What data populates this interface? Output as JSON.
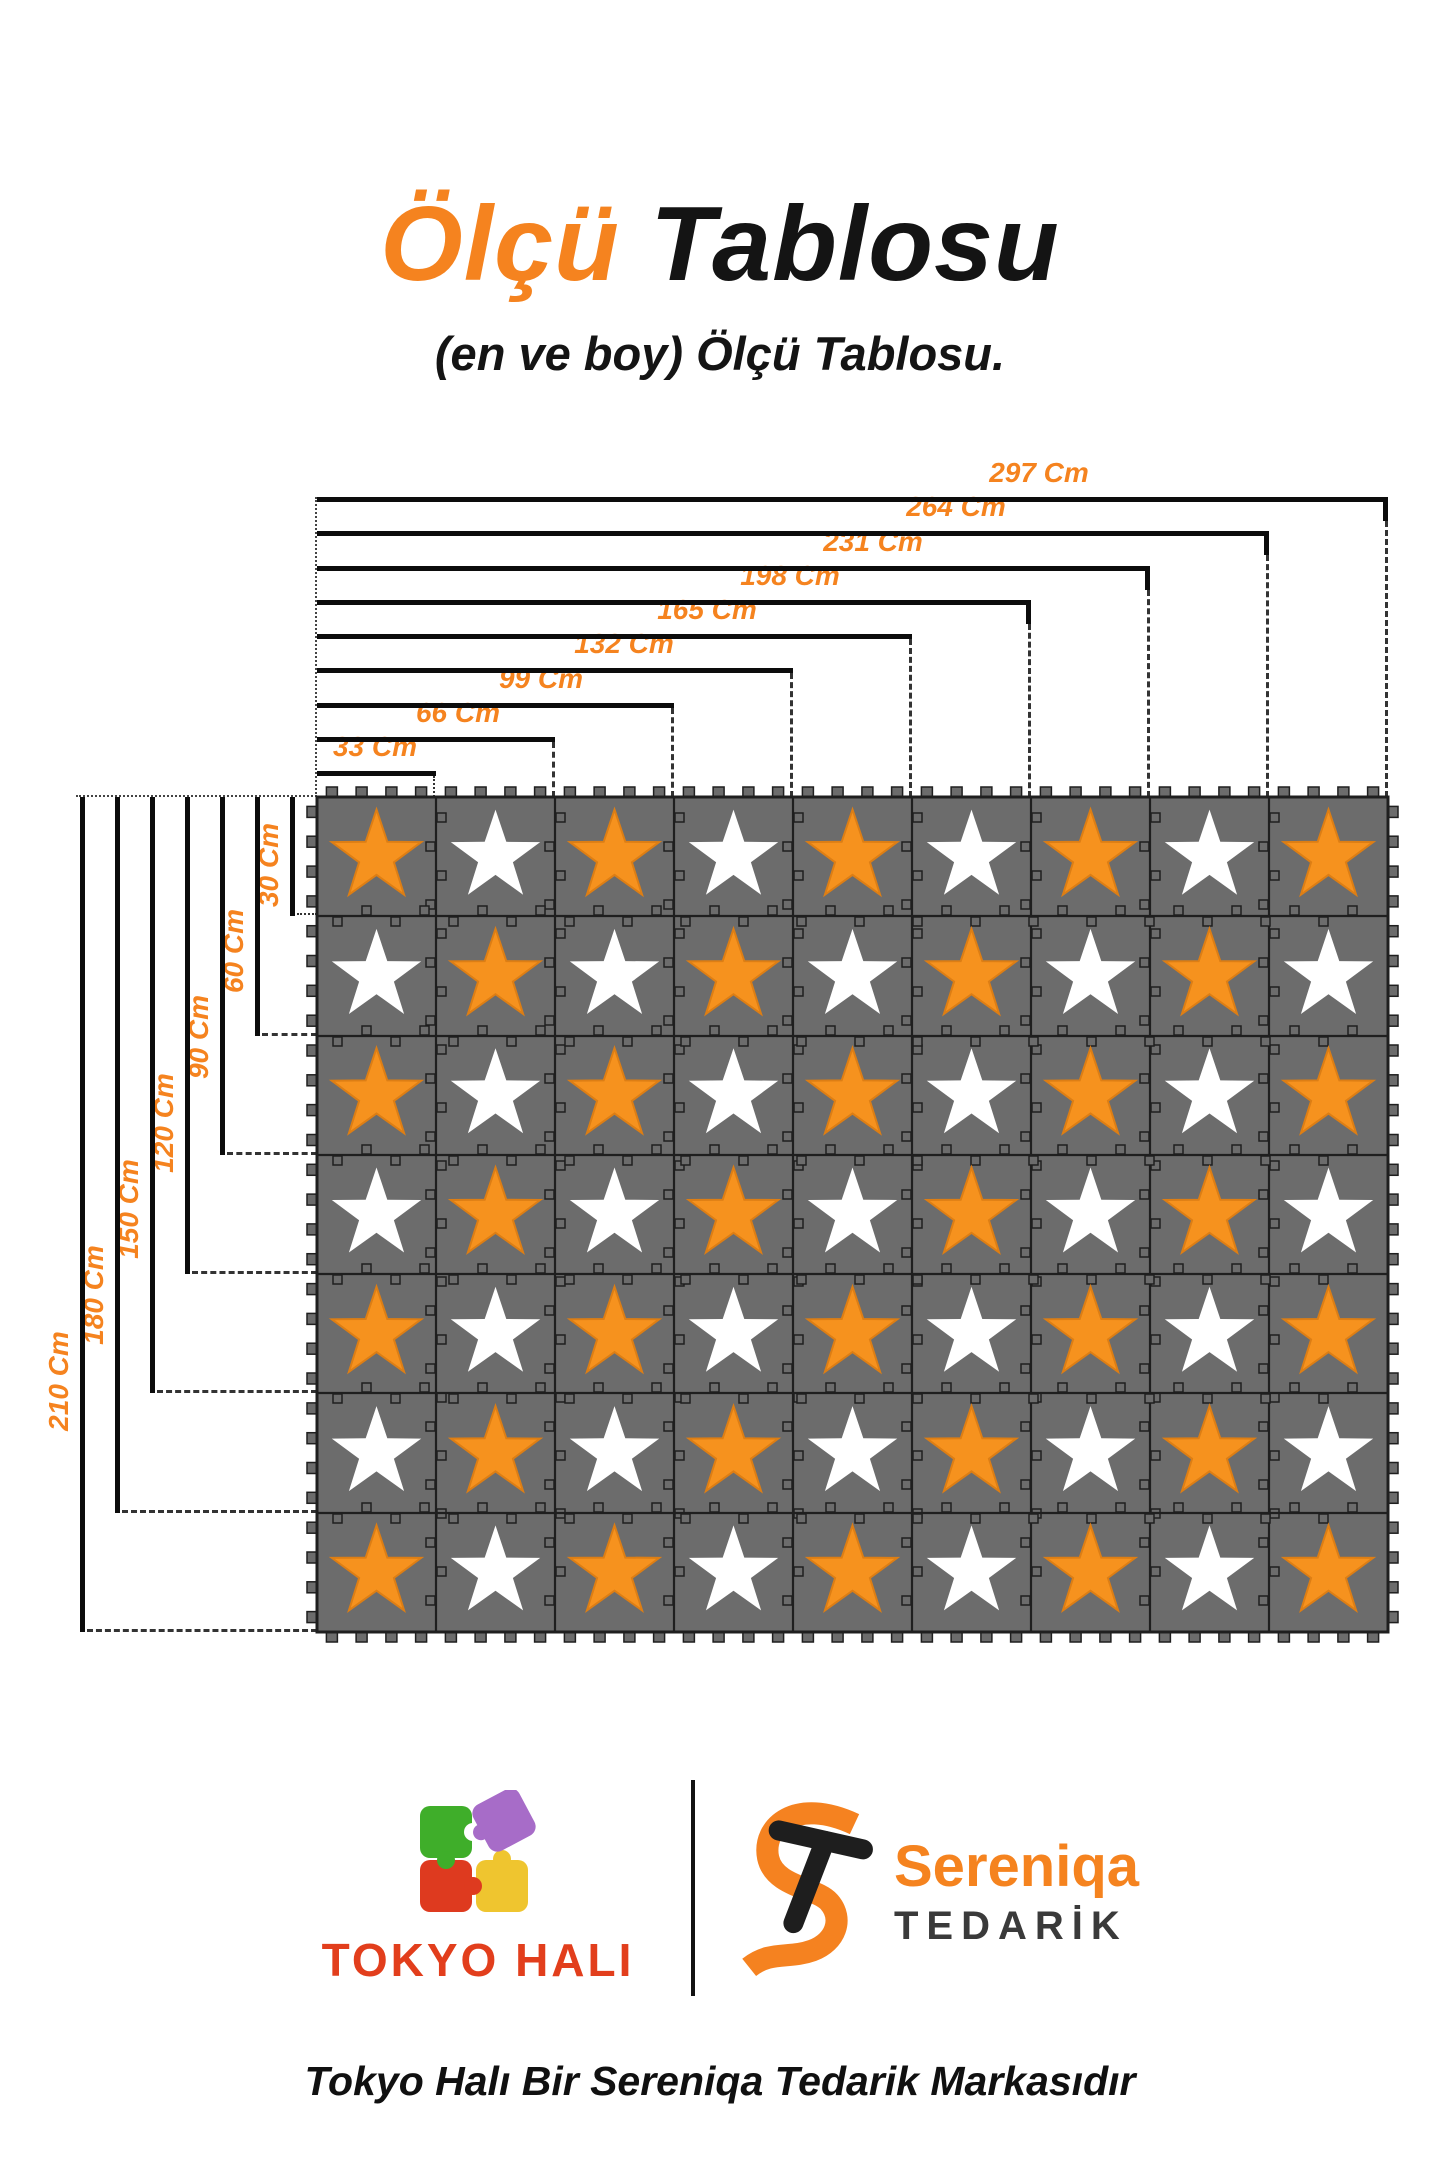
{
  "title": {
    "highlight": "Ölçü",
    "rest": " Tablosu"
  },
  "subtitle": "(en ve boy) Ölçü Tablosu.",
  "measurements": {
    "unit": "Cm",
    "widths_cm": [
      33,
      66,
      99,
      132,
      165,
      198,
      231,
      264,
      297
    ],
    "heights_cm": [
      30,
      60,
      90,
      120,
      150,
      180,
      210
    ],
    "width_labels": [
      "33 Cm",
      "66 Cm",
      "99 Cm",
      "132 Cm",
      "165 Cm",
      "198 Cm",
      "231 Cm",
      "264 Cm",
      "297 Cm"
    ],
    "height_labels": [
      "30 Cm",
      "60 Cm",
      "90 Cm",
      "120 Cm",
      "150 Cm",
      "180 Cm",
      "210 Cm"
    ]
  },
  "mat": {
    "columns": 9,
    "rows": 7,
    "tile_width_cm": 33,
    "tile_height_cm": 30,
    "pattern": "checkerboard-stars",
    "first_star_color": "orange",
    "colors": {
      "tile_gray": "#6C6C6C",
      "seam_dark": "#1F1F1F",
      "star_orange": "#F6921E",
      "star_orange_edge": "#DD7E14",
      "star_white": "#FFFFFF"
    }
  },
  "colors": {
    "accent_orange": "#F5831F",
    "text_black": "#141414",
    "dash_gray": "#333333"
  },
  "footer": {
    "tokyo": {
      "brand": "TOKYO HALI",
      "brand_color": "#E23E1C",
      "puzzle_logo_colors": {
        "green": "#3FAE2A",
        "purple": "#A76CC8",
        "red": "#DE3A1F",
        "yellow": "#EFC52F"
      }
    },
    "sereniqa": {
      "name": "Sereniqa",
      "subtitle": "TEDARİK",
      "name_color": "#F5831F",
      "subtitle_color": "#3A3A3A",
      "mark_orange": "#F58220",
      "mark_black": "#1E1E1E"
    },
    "tagline": "Tokyo Halı Bir Sereniqa Tedarik Markasıdır"
  }
}
